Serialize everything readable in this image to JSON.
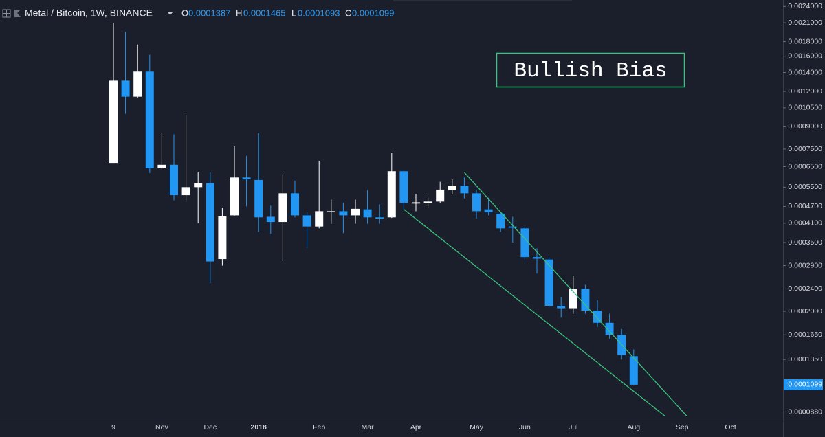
{
  "chart_data": {
    "type": "candlestick",
    "title": "Metal / Bitcoin, 1W, BINANCE",
    "ohlc_labels": [
      "O",
      "H",
      "L",
      "C"
    ],
    "annotation": "Bullish Bias",
    "log_scale": true,
    "grid": false,
    "up_color": "#ffffff",
    "down_color": "#2196f3",
    "trendline_color": "#3cc47c",
    "categories": [
      "9",
      null,
      null,
      null,
      "Nov",
      null,
      null,
      null,
      "Dec",
      null,
      null,
      null,
      "2018",
      null,
      null,
      null,
      null,
      "Feb",
      null,
      null,
      null,
      "Mar",
      null,
      null,
      null,
      "Apr",
      null,
      null,
      null,
      null,
      "May",
      null,
      null,
      null,
      "Jun",
      null,
      null,
      null,
      "Jul",
      null,
      null,
      null,
      null,
      "Aug",
      null,
      null,
      null,
      "Sep",
      null,
      null,
      null,
      "Oct",
      null
    ],
    "open": [
      0.00067,
      0.00131,
      0.00115,
      0.00141,
      0.000641,
      0.00066,
      0.000515,
      0.00055,
      0.000568,
      0.000306,
      0.000437,
      0.000595,
      0.000583,
      0.000432,
      0.000414,
      0.000523,
      0.000437,
      0.000399,
      0.000448,
      0.000452,
      0.000437,
      0.000459,
      0.00043,
      0.00043,
      0.000626,
      0.000481,
      0.000484,
      0.000489,
      0.000537,
      0.000556,
      0.000523,
      0.000459,
      0.000443,
      0.000399,
      0.000393,
      0.000311,
      0.000305,
      0.000209,
      0.000205,
      0.00024,
      0.000201,
      0.000182,
      0.000165,
      0.0001387,
      null,
      null,
      null,
      null,
      null,
      null,
      null,
      null,
      null
    ],
    "high": [
      0.0021,
      0.00195,
      0.00176,
      0.00162,
      0.000858,
      0.000846,
      0.00099,
      0.00062,
      0.00062,
      0.000466,
      0.000767,
      0.000709,
      0.000854,
      0.000473,
      0.00061,
      0.00058,
      0.000448,
      0.000681,
      0.000497,
      0.000484,
      0.000497,
      0.000537,
      0.000478,
      0.000726,
      0.000628,
      0.000518,
      0.00051,
      0.000574,
      0.000586,
      0.000595,
      0.000537,
      0.000505,
      0.000448,
      0.000432,
      0.000397,
      0.000334,
      0.000311,
      0.000225,
      0.000267,
      0.000248,
      0.000219,
      0.000196,
      0.000173,
      0.0001465,
      null,
      null,
      null,
      null,
      null,
      null,
      null,
      null,
      null
    ],
    "low": [
      0.00067,
      0.001,
      0.00114,
      0.000617,
      0.000635,
      0.000494,
      0.000489,
      0.00041,
      0.000251,
      0.00029,
      0.000436,
      0.00047,
      0.000382,
      0.000376,
      0.000301,
      0.00043,
      0.000336,
      0.000393,
      0.000408,
      0.000378,
      0.000408,
      0.000408,
      0.000408,
      0.000428,
      0.000459,
      0.000452,
      0.000466,
      0.000484,
      0.000518,
      0.000502,
      0.000426,
      0.000437,
      0.000382,
      0.00035,
      0.000305,
      0.000272,
      0.000207,
      0.00019,
      0.000196,
      0.000196,
      0.000176,
      0.00016,
      0.000135,
      0.0001093,
      null,
      null,
      null,
      null,
      null,
      null,
      null,
      null,
      null
    ],
    "close": [
      0.00131,
      0.00115,
      0.00141,
      0.000641,
      0.00066,
      0.000515,
      0.00055,
      0.000568,
      0.0003,
      0.000434,
      0.000595,
      0.000586,
      0.00043,
      0.000414,
      0.000523,
      0.000437,
      0.000399,
      0.000452,
      0.000452,
      0.000437,
      0.000461,
      0.00043,
      0.000426,
      0.000626,
      0.000484,
      0.000486,
      0.000489,
      0.000539,
      0.000556,
      0.000523,
      0.000452,
      0.000448,
      0.000393,
      0.000395,
      0.000311,
      0.000307,
      0.000209,
      0.000205,
      0.00024,
      0.000201,
      0.000182,
      0.000165,
      0.00014,
      0.0001099,
      null,
      null,
      null,
      null,
      null,
      null,
      null,
      null,
      null
    ],
    "trendlines": [
      {
        "x": [
          29,
          47.4
        ],
        "y": [
          0.00062,
          8.5e-05
        ]
      },
      {
        "x": [
          24,
          45.6
        ],
        "y": [
          0.000459,
          8.5e-05
        ]
      }
    ],
    "ylim": [
      8.3e-05,
      0.0025
    ],
    "yticks": [
      {
        "value": 0.0024,
        "label": "0.0024000"
      },
      {
        "value": 0.0021,
        "label": "0.0021000"
      },
      {
        "value": 0.0018,
        "label": "0.0018000"
      },
      {
        "value": 0.0016,
        "label": "0.0016000"
      },
      {
        "value": 0.0014,
        "label": "0.0014000"
      },
      {
        "value": 0.0012,
        "label": "0.0012000"
      },
      {
        "value": 0.00105,
        "label": "0.0010500"
      },
      {
        "value": 0.0009,
        "label": "0.0009000"
      },
      {
        "value": 0.00075,
        "label": "0.0007500"
      },
      {
        "value": 0.00065,
        "label": "0.0006500"
      },
      {
        "value": 0.00055,
        "label": "0.0005500"
      },
      {
        "value": 0.00047,
        "label": "0.0004700"
      },
      {
        "value": 0.00041,
        "label": "0.0004100"
      },
      {
        "value": 0.00035,
        "label": "0.0003500"
      },
      {
        "value": 0.00029,
        "label": "0.0002900"
      },
      {
        "value": 0.00024,
        "label": "0.0002400"
      },
      {
        "value": 0.0002,
        "label": "0.0002000"
      },
      {
        "value": 0.000165,
        "label": "0.0001650"
      },
      {
        "value": 0.000135,
        "label": "0.0001350"
      },
      {
        "value": 8.8e-05,
        "label": "0.0000880"
      }
    ]
  }
}
